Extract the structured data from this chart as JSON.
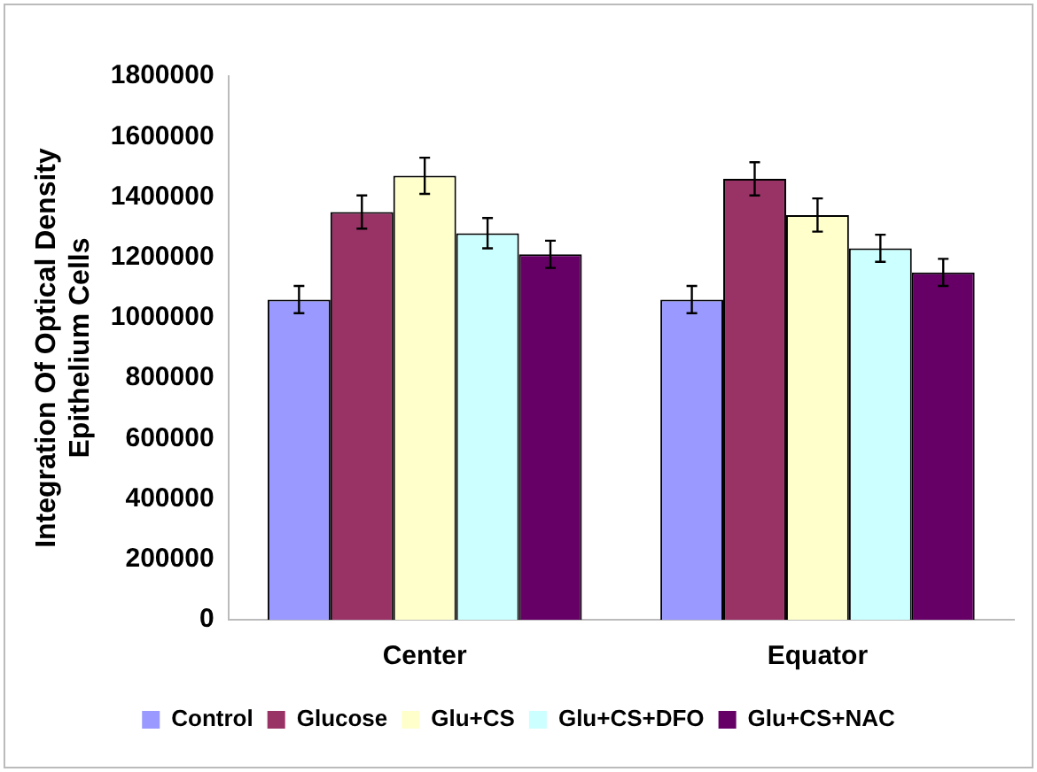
{
  "chart_data": {
    "type": "bar",
    "ylabel": "Integration Of Optical Density\nEpithelium Cells",
    "categories": [
      "Center",
      "Equator"
    ],
    "series": [
      {
        "name": "Control",
        "color": "#9999ff",
        "values": [
          1060000,
          1060000
        ],
        "errors": [
          45000,
          45000
        ]
      },
      {
        "name": "Glucose",
        "color": "#993366",
        "values": [
          1350000,
          1460000
        ],
        "errors": [
          55000,
          55000
        ]
      },
      {
        "name": "Glu+CS",
        "color": "#ffffcc",
        "values": [
          1470000,
          1340000
        ],
        "errors": [
          60000,
          55000
        ]
      },
      {
        "name": "Glu+CS+DFO",
        "color": "#ccffff",
        "values": [
          1280000,
          1230000
        ],
        "errors": [
          50000,
          45000
        ]
      },
      {
        "name": "Glu+CS+NAC",
        "color": "#660066",
        "values": [
          1210000,
          1150000
        ],
        "errors": [
          45000,
          45000
        ]
      }
    ],
    "ylim": [
      0,
      1800000
    ],
    "yticks": [
      0,
      200000,
      400000,
      600000,
      800000,
      1000000,
      1200000,
      1400000,
      1600000,
      1800000
    ],
    "grid": false,
    "legend": "bottom"
  }
}
